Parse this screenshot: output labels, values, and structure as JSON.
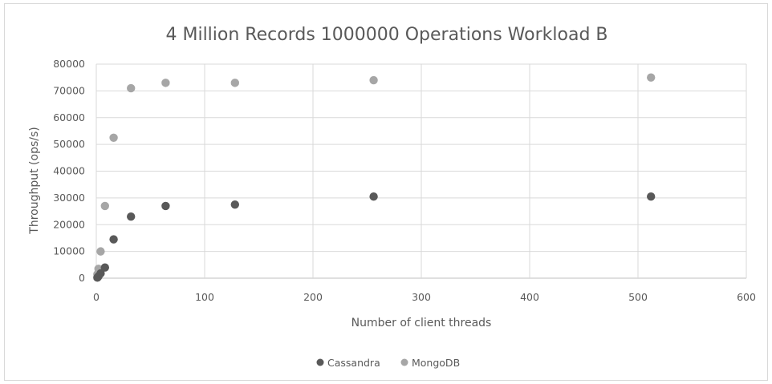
{
  "chart_data": {
    "type": "scatter",
    "title": "4 Million Records 1000000 Operations Workload B",
    "xlabel": "Number  of client threads",
    "ylabel": "Throughput (ops/s)",
    "xlim": [
      0,
      600
    ],
    "ylim": [
      0,
      80000
    ],
    "xticks": [
      "0",
      "100",
      "200",
      "300",
      "400",
      "500",
      "600"
    ],
    "yticks": [
      "0",
      "10000",
      "20000",
      "30000",
      "40000",
      "50000",
      "60000",
      "70000",
      "80000"
    ],
    "grid": true,
    "legend_position": "bottom",
    "series": [
      {
        "name": "Cassandra",
        "color": "#595959",
        "x": [
          1,
          2,
          4,
          8,
          16,
          32,
          64,
          128,
          256,
          512
        ],
        "y": [
          200,
          700,
          1800,
          4000,
          14500,
          23000,
          27000,
          27500,
          30500,
          30500
        ]
      },
      {
        "name": "MongoDB",
        "color": "#a6a6a6",
        "x": [
          1,
          2,
          4,
          8,
          16,
          32,
          64,
          128,
          256,
          512
        ],
        "y": [
          1500,
          3500,
          10000,
          27000,
          52500,
          71000,
          73000,
          73000,
          74000,
          75000
        ]
      }
    ]
  }
}
